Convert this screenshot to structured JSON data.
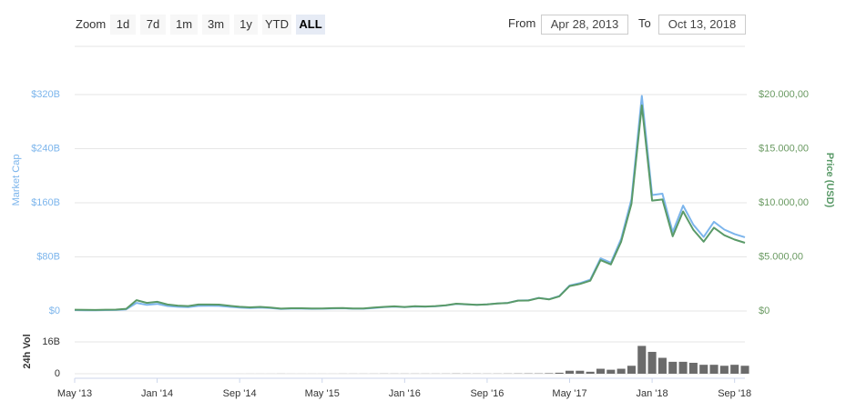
{
  "controls": {
    "zoom_label": "Zoom",
    "buttons": [
      "1d",
      "7d",
      "1m",
      "3m",
      "1y",
      "YTD",
      "ALL"
    ],
    "selected": "ALL",
    "from_label": "From",
    "from": "Apr 28, 2013",
    "to_label": "To",
    "to": "Oct 13, 2018"
  },
  "chart_data": [
    {
      "type": "line",
      "ylabel": "Market Cap",
      "y2label": "Price (USD)",
      "x": [
        "2013-05",
        "2013-06",
        "2013-07",
        "2013-08",
        "2013-09",
        "2013-10",
        "2013-11",
        "2013-12",
        "2014-01",
        "2014-02",
        "2014-03",
        "2014-04",
        "2014-05",
        "2014-06",
        "2014-07",
        "2014-08",
        "2014-09",
        "2014-10",
        "2014-11",
        "2014-12",
        "2015-01",
        "2015-02",
        "2015-03",
        "2015-04",
        "2015-05",
        "2015-06",
        "2015-07",
        "2015-08",
        "2015-09",
        "2015-10",
        "2015-11",
        "2015-12",
        "2016-01",
        "2016-02",
        "2016-03",
        "2016-04",
        "2016-05",
        "2016-06",
        "2016-07",
        "2016-08",
        "2016-09",
        "2016-10",
        "2016-11",
        "2016-12",
        "2017-01",
        "2017-02",
        "2017-03",
        "2017-04",
        "2017-05",
        "2017-06",
        "2017-07",
        "2017-08",
        "2017-09",
        "2017-10",
        "2017-11",
        "2017-12",
        "2018-01",
        "2018-02",
        "2018-03",
        "2018-04",
        "2018-05",
        "2018-06",
        "2018-07",
        "2018-08",
        "2018-09",
        "2018-10"
      ],
      "xlim": [
        "2013-05",
        "2018-10"
      ],
      "ylim": [
        0,
        320000000000.0
      ],
      "yticks": [
        {
          "value": 0,
          "label": "$0"
        },
        {
          "value": 80000000000.0,
          "label": "$80B"
        },
        {
          "value": 160000000000.0,
          "label": "$160B"
        },
        {
          "value": 240000000000.0,
          "label": "$240B"
        },
        {
          "value": 320000000000.0,
          "label": "$320B"
        }
      ],
      "y2lim": [
        0,
        20000
      ],
      "y2ticks": [
        {
          "value": 0,
          "label": "$0"
        },
        {
          "value": 5000,
          "label": "$5.000,00"
        },
        {
          "value": 10000,
          "label": "$10.000,00"
        },
        {
          "value": 15000,
          "label": "$15.000,00"
        },
        {
          "value": 20000,
          "label": "$20.000,00"
        }
      ],
      "grid": true,
      "series": [
        {
          "color": "#7cb5ec",
          "axis": "y",
          "values": [
            1300000000.0,
            1100000000.0,
            1000000000.0,
            1400000000.0,
            1500000000.0,
            2400000000.0,
            12000000000.0,
            9000000000.0,
            10500000000.0,
            7400000000.0,
            6200000000.0,
            5600000000.0,
            7500000000.0,
            7600000000.0,
            7500000000.0,
            6200000000.0,
            5100000000.0,
            4500000000.0,
            5100000000.0,
            4300000000.0,
            3000000000.0,
            3500000000.0,
            3500000000.0,
            3200000000.0,
            3300000000.0,
            3700000000.0,
            4000000000.0,
            3300000000.0,
            3400000000.0,
            4500000000.0,
            5600000000.0,
            6400000000.0,
            5600000000.0,
            6600000000.0,
            6300000000.0,
            6900000000.0,
            8200000000.0,
            10400000000.0,
            9700000000.0,
            9100000000.0,
            9700000000.0,
            11200000000.0,
            11900000000.0,
            15500000000.0,
            15700000000.0,
            19300000000.0,
            17400000000.0,
            22100000000.0,
            37700000000.0,
            41100000000.0,
            46200000000.0,
            77800000000.0,
            71400000000.0,
            106600000000.0,
            165300000000.0,
            318000000000.0,
            171400000000.0,
            173400000000.0,
            116600000000.0,
            155800000000.0,
            127500000000.0,
            109400000000.0,
            131900000000.0,
            120300000000.0,
            113800000000.0,
            109000000000.0
          ]
        },
        {
          "color": "#5a9a68",
          "axis": "y2",
          "values": [
            120,
            100,
            90,
            120,
            130,
            200,
            1000,
            750,
            850,
            600,
            500,
            450,
            600,
            600,
            590,
            480,
            390,
            340,
            380,
            320,
            220,
            250,
            250,
            230,
            235,
            260,
            280,
            230,
            235,
            310,
            380,
            430,
            370,
            435,
            415,
            450,
            530,
            670,
            620,
            575,
            610,
            700,
            740,
            960,
            970,
            1190,
            1070,
            1350,
            2300,
            2500,
            2800,
            4700,
            4300,
            6400,
            9900,
            19000,
            10200,
            10300,
            6900,
            9200,
            7500,
            6400,
            7700,
            7000,
            6600,
            6300
          ]
        }
      ]
    },
    {
      "type": "bar",
      "ylabel": "24h Vol",
      "x": [
        "2013-05",
        "2013-06",
        "2013-07",
        "2013-08",
        "2013-09",
        "2013-10",
        "2013-11",
        "2013-12",
        "2014-01",
        "2014-02",
        "2014-03",
        "2014-04",
        "2014-05",
        "2014-06",
        "2014-07",
        "2014-08",
        "2014-09",
        "2014-10",
        "2014-11",
        "2014-12",
        "2015-01",
        "2015-02",
        "2015-03",
        "2015-04",
        "2015-05",
        "2015-06",
        "2015-07",
        "2015-08",
        "2015-09",
        "2015-10",
        "2015-11",
        "2015-12",
        "2016-01",
        "2016-02",
        "2016-03",
        "2016-04",
        "2016-05",
        "2016-06",
        "2016-07",
        "2016-08",
        "2016-09",
        "2016-10",
        "2016-11",
        "2016-12",
        "2017-01",
        "2017-02",
        "2017-03",
        "2017-04",
        "2017-05",
        "2017-06",
        "2017-07",
        "2017-08",
        "2017-09",
        "2017-10",
        "2017-11",
        "2017-12",
        "2018-01",
        "2018-02",
        "2018-03",
        "2018-04",
        "2018-05",
        "2018-06",
        "2018-07",
        "2018-08",
        "2018-09",
        "2018-10"
      ],
      "xlim": [
        "2013-05",
        "2018-10"
      ],
      "xticks": [
        {
          "value": "2013-05",
          "label": "May '13"
        },
        {
          "value": "2014-01",
          "label": "Jan '14"
        },
        {
          "value": "2014-09",
          "label": "Sep '14"
        },
        {
          "value": "2015-05",
          "label": "May '15"
        },
        {
          "value": "2016-01",
          "label": "Jan '16"
        },
        {
          "value": "2016-09",
          "label": "Sep '16"
        },
        {
          "value": "2017-05",
          "label": "May '17"
        },
        {
          "value": "2018-01",
          "label": "Jan '18"
        },
        {
          "value": "2018-09",
          "label": "Sep '18"
        }
      ],
      "ylim": [
        0,
        27000000000.0
      ],
      "yticks": [
        0,
        {
          "value": 16000000000.0,
          "label": "16B"
        }
      ],
      "grid": true,
      "color": "#6b6b6b",
      "values": [
        0,
        0,
        0,
        0,
        0,
        0,
        0,
        0,
        0,
        0,
        0,
        0,
        0,
        0,
        0,
        0,
        10000000.0,
        20000000.0,
        20000000.0,
        20000000.0,
        30000000.0,
        20000000.0,
        20000000.0,
        20000000.0,
        20000000.0,
        20000000.0,
        30000000.0,
        30000000.0,
        30000000.0,
        40000000.0,
        60000000.0,
        50000000.0,
        50000000.0,
        50000000.0,
        50000000.0,
        50000000.0,
        60000000.0,
        100000000.0,
        80000000.0,
        70000000.0,
        60000000.0,
        70000000.0,
        90000000.0,
        120000000.0,
        150000000.0,
        150000000.0,
        250000000.0,
        500000000.0,
        1500000000.0,
        1500000000.0,
        1000000000.0,
        2500000000.0,
        2000000000.0,
        2500000000.0,
        4000000000.0,
        14000000000.0,
        11000000000.0,
        8000000000.0,
        6000000000.0,
        6000000000.0,
        5500000000.0,
        4500000000.0,
        4500000000.0,
        4000000000.0,
        4500000000.0,
        4000000000.0
      ]
    }
  ]
}
